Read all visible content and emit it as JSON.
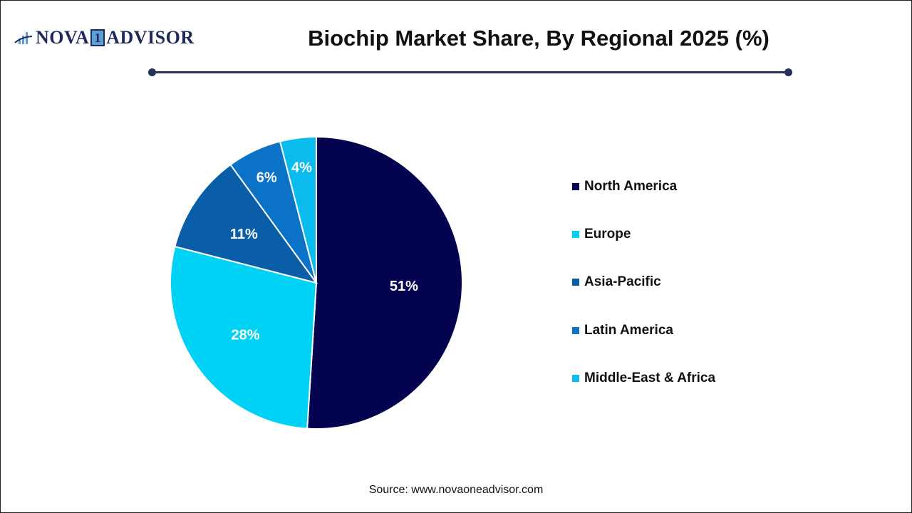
{
  "header": {
    "logo_text_left": "NOVA",
    "logo_text_one": "1",
    "logo_text_right": "ADVISOR",
    "title": "Biochip Market Share, By Regional 2025 (%)"
  },
  "footer": {
    "source": "Source: www.novaoneadvisor.com"
  },
  "chart_data": {
    "type": "pie",
    "title": "Biochip Market Share, By Regional 2025 (%)",
    "categories": [
      "North America",
      "Europe",
      "Asia-Pacific",
      "Latin America",
      "Middle-East & Africa"
    ],
    "values": [
      51,
      28,
      11,
      6,
      4
    ],
    "labels": [
      "51%",
      "28%",
      "11%",
      "6%",
      "4%"
    ],
    "colors": [
      "#03034f",
      "#00d2f5",
      "#0a5ea8",
      "#0a73c7",
      "#0bbbee"
    ],
    "start_angle": "12 o'clock",
    "direction": "clockwise",
    "legend_position": "right",
    "unit": "%"
  },
  "legend": {
    "items": [
      {
        "label": "North America",
        "color": "#03034f"
      },
      {
        "label": "Europe",
        "color": "#00d2f5"
      },
      {
        "label": "Asia-Pacific",
        "color": "#0a5ea8"
      },
      {
        "label": "Latin America",
        "color": "#0a73c7"
      },
      {
        "label": "Middle-East & Africa",
        "color": "#0bbbee"
      }
    ]
  }
}
